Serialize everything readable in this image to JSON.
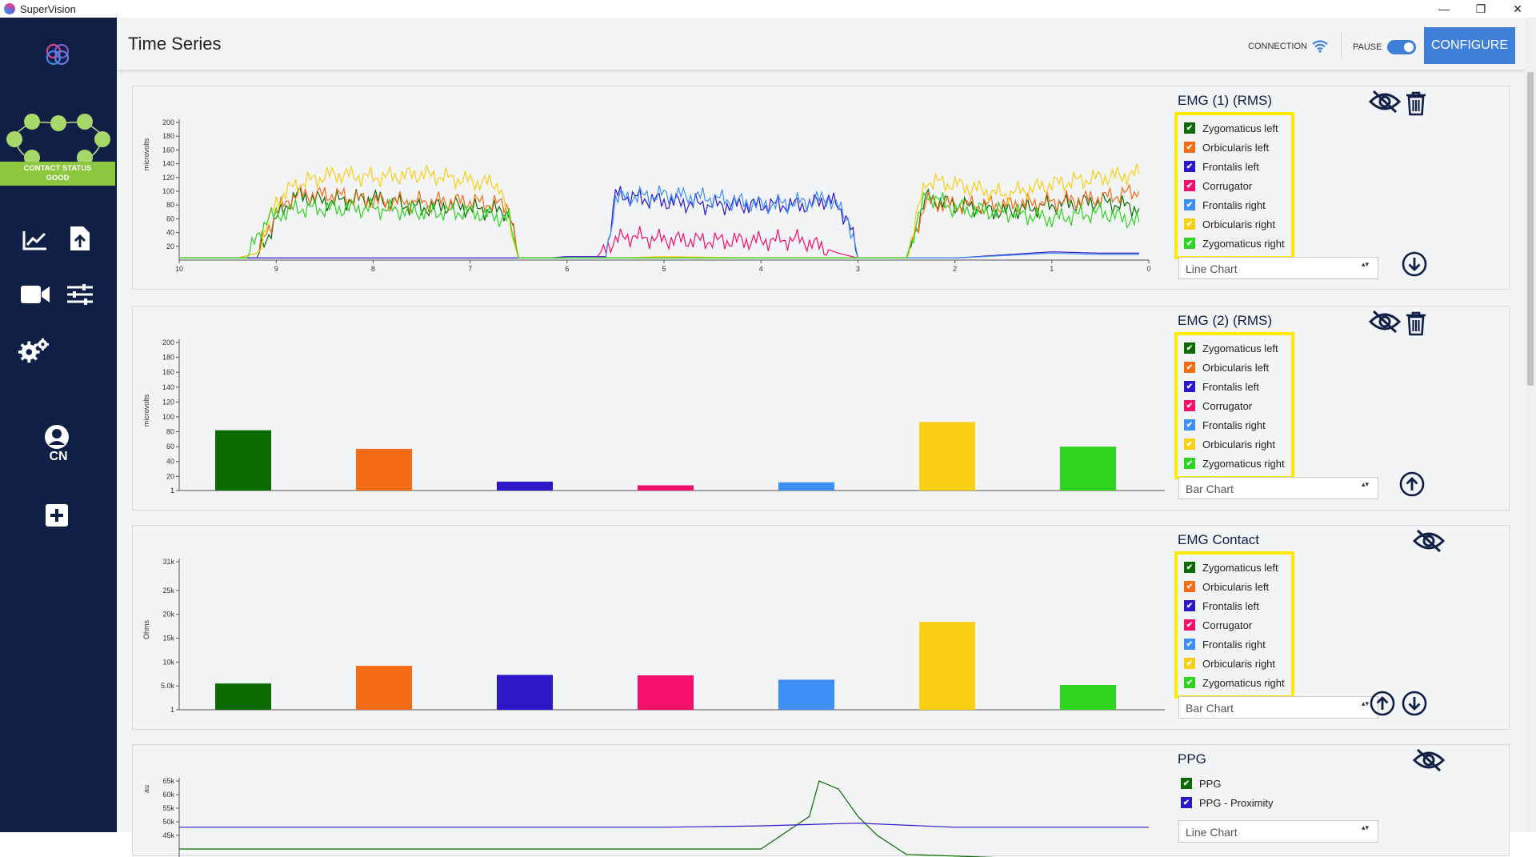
{
  "window": {
    "title": "SuperVision",
    "minimize": "—",
    "restore": "❐",
    "close": "✕"
  },
  "sidebar": {
    "contact_status_line1": "CONTACT STATUS",
    "contact_status_line2": "GOOD",
    "user_initials": "CN",
    "status_color": "#8dc63f"
  },
  "topbar": {
    "title": "Time Series",
    "connection_label": "CONNECTION",
    "pause_label": "PAUSE",
    "configure_label": "CONFIGURE"
  },
  "legend_labels": [
    "Zygomaticus left",
    "Orbicularis left",
    "Frontalis left",
    "Corrugator",
    "Frontalis right",
    "Orbicularis right",
    "Zygomaticus right"
  ],
  "series_colors": [
    "#0a6b00",
    "#f56b16",
    "#2d17c9",
    "#f5106c",
    "#3d8ff5",
    "#f8cf12",
    "#2ed41f"
  ],
  "panels": [
    {
      "title": "EMG (1) (RMS)",
      "chart_type_label": "Line Chart"
    },
    {
      "title": "EMG (2) (RMS)",
      "chart_type_label": "Bar Chart"
    },
    {
      "title": "EMG Contact",
      "chart_type_label": "Bar Chart"
    },
    {
      "title": "PPG",
      "chart_type_label": "Line Chart",
      "legend": [
        "PPG",
        "PPG - Proximity"
      ]
    }
  ],
  "chart_data": [
    {
      "type": "line",
      "title": "EMG (1) (RMS)",
      "ylabel": "microvolts",
      "xlim": [
        10,
        0
      ],
      "ylim": [
        0,
        200
      ],
      "xticks": [
        10,
        9,
        8,
        7,
        6,
        5,
        4,
        3,
        2,
        1,
        0
      ],
      "yticks": [
        20,
        40,
        60,
        80,
        100,
        120,
        140,
        160,
        180,
        200
      ],
      "grid": false,
      "series": [
        {
          "name": "Zygomaticus left",
          "points": [
            [
              10,
              3
            ],
            [
              9.5,
              3
            ],
            [
              9.2,
              3
            ],
            [
              9.0,
              60
            ],
            [
              8.8,
              95
            ],
            [
              8.5,
              85
            ],
            [
              8.0,
              90
            ],
            [
              7.5,
              75
            ],
            [
              7.2,
              80
            ],
            [
              7.0,
              75
            ],
            [
              6.6,
              70
            ],
            [
              6.5,
              3
            ],
            [
              5.0,
              3
            ],
            [
              4.0,
              3
            ],
            [
              3.0,
              3
            ],
            [
              2.5,
              3
            ],
            [
              2.3,
              90
            ],
            [
              2.0,
              80
            ],
            [
              1.5,
              70
            ],
            [
              1.0,
              80
            ],
            [
              0.5,
              85
            ],
            [
              0.1,
              75
            ]
          ]
        },
        {
          "name": "Orbicularis left",
          "points": [
            [
              10,
              3
            ],
            [
              9.4,
              3
            ],
            [
              9.2,
              10
            ],
            [
              9.0,
              70
            ],
            [
              8.8,
              95
            ],
            [
              8.4,
              95
            ],
            [
              8.0,
              85
            ],
            [
              7.5,
              85
            ],
            [
              7.0,
              85
            ],
            [
              6.6,
              80
            ],
            [
              6.5,
              3
            ],
            [
              3.0,
              3
            ],
            [
              2.5,
              3
            ],
            [
              2.3,
              85
            ],
            [
              2.0,
              80
            ],
            [
              1.5,
              80
            ],
            [
              1.0,
              85
            ],
            [
              0.5,
              90
            ],
            [
              0.1,
              100
            ]
          ]
        },
        {
          "name": "Frontalis left",
          "points": [
            [
              10,
              3
            ],
            [
              9,
              3
            ],
            [
              7,
              3
            ],
            [
              6.5,
              3
            ],
            [
              6.2,
              3
            ],
            [
              6.0,
              5
            ],
            [
              5.6,
              5
            ],
            [
              5.5,
              95
            ],
            [
              5.0,
              85
            ],
            [
              4.5,
              80
            ],
            [
              4.0,
              80
            ],
            [
              3.5,
              80
            ],
            [
              3.3,
              90
            ],
            [
              3.1,
              60
            ],
            [
              3.0,
              3
            ],
            [
              2.0,
              3
            ],
            [
              1.0,
              12
            ],
            [
              0.5,
              10
            ],
            [
              0.1,
              10
            ]
          ]
        },
        {
          "name": "Corrugator",
          "points": [
            [
              6.0,
              3
            ],
            [
              5.7,
              3
            ],
            [
              5.6,
              20
            ],
            [
              5.4,
              35
            ],
            [
              5.0,
              30
            ],
            [
              4.5,
              28
            ],
            [
              4.0,
              28
            ],
            [
              3.6,
              30
            ],
            [
              3.4,
              20
            ],
            [
              3.2,
              10
            ],
            [
              3.0,
              3
            ]
          ]
        },
        {
          "name": "Frontalis right",
          "points": [
            [
              6.0,
              3
            ],
            [
              5.6,
              3
            ],
            [
              5.5,
              90
            ],
            [
              5.0,
              95
            ],
            [
              4.5,
              90
            ],
            [
              4.0,
              80
            ],
            [
              3.5,
              85
            ],
            [
              3.3,
              90
            ],
            [
              3.1,
              60
            ],
            [
              3.0,
              3
            ],
            [
              2.0,
              3
            ],
            [
              1.0,
              10
            ],
            [
              0.5,
              8
            ],
            [
              0.1,
              8
            ]
          ]
        },
        {
          "name": "Orbicularis right",
          "points": [
            [
              10,
              3
            ],
            [
              9.4,
              3
            ],
            [
              9.2,
              10
            ],
            [
              9.0,
              85
            ],
            [
              8.8,
              110
            ],
            [
              8.4,
              125
            ],
            [
              8.0,
              120
            ],
            [
              7.5,
              125
            ],
            [
              7.0,
              115
            ],
            [
              6.7,
              110
            ],
            [
              6.5,
              3
            ],
            [
              5.5,
              3
            ],
            [
              5.0,
              5
            ],
            [
              4.0,
              3
            ],
            [
              3.0,
              3
            ],
            [
              2.5,
              3
            ],
            [
              2.3,
              115
            ],
            [
              2.0,
              110
            ],
            [
              1.5,
              95
            ],
            [
              1.0,
              110
            ],
            [
              0.5,
              120
            ],
            [
              0.1,
              125
            ]
          ]
        },
        {
          "name": "Zygomaticus right",
          "points": [
            [
              10,
              3
            ],
            [
              9.3,
              3
            ],
            [
              9.1,
              60
            ],
            [
              8.8,
              75
            ],
            [
              8.5,
              75
            ],
            [
              8.0,
              75
            ],
            [
              7.5,
              70
            ],
            [
              7.0,
              70
            ],
            [
              6.6,
              60
            ],
            [
              6.5,
              3
            ],
            [
              3.0,
              3
            ],
            [
              2.5,
              3
            ],
            [
              2.3,
              95
            ],
            [
              2.0,
              75
            ],
            [
              1.5,
              70
            ],
            [
              1.0,
              60
            ],
            [
              0.5,
              70
            ],
            [
              0.1,
              55
            ]
          ]
        }
      ]
    },
    {
      "type": "bar",
      "title": "EMG (2) (RMS)",
      "ylabel": "microvolts",
      "ylim": [
        1,
        200
      ],
      "yticks": [
        1,
        20,
        40,
        60,
        80,
        100,
        120,
        140,
        160,
        180,
        200
      ],
      "categories": [
        "Zygomaticus left",
        "Orbicularis left",
        "Frontalis left",
        "Corrugator",
        "Frontalis right",
        "Orbicularis right",
        "Zygomaticus right"
      ],
      "values": [
        82,
        57,
        13,
        8,
        12,
        93,
        60
      ]
    },
    {
      "type": "bar",
      "title": "EMG Contact",
      "ylabel": "Ohms",
      "ylim": [
        1,
        31000
      ],
      "yticks": [
        1,
        5000,
        10000,
        15000,
        20000,
        25000,
        31000
      ],
      "ytick_labels": [
        "1",
        "5.0k",
        "10k",
        "15k",
        "20k",
        "25k",
        "31k"
      ],
      "categories": [
        "Zygomaticus left",
        "Orbicularis left",
        "Frontalis left",
        "Corrugator",
        "Frontalis right",
        "Orbicularis right",
        "Zygomaticus right"
      ],
      "values": [
        5500,
        9200,
        7300,
        7200,
        6300,
        18400,
        5200
      ]
    },
    {
      "type": "line",
      "title": "PPG",
      "ylabel": "au",
      "ytick_labels": [
        "65k",
        "60k",
        "55k",
        "50k",
        "45k"
      ],
      "series": [
        {
          "name": "PPG",
          "points": [
            [
              0,
              40
            ],
            [
              0.6,
              40
            ],
            [
              0.65,
              52
            ],
            [
              0.66,
              65
            ],
            [
              0.68,
              62
            ],
            [
              0.7,
              52
            ],
            [
              0.72,
              45
            ],
            [
              0.75,
              38
            ],
            [
              1,
              35
            ]
          ]
        },
        {
          "name": "PPG - Proximity",
          "points": [
            [
              0,
              48
            ],
            [
              0.5,
              48
            ],
            [
              0.6,
              48.5
            ],
            [
              0.7,
              49.5
            ],
            [
              0.8,
              48
            ],
            [
              1,
              48
            ]
          ]
        }
      ]
    }
  ]
}
